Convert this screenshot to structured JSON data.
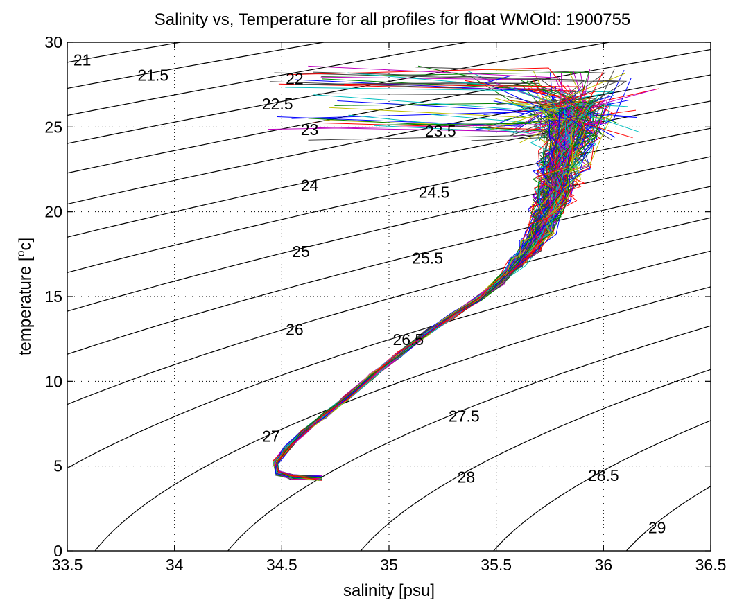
{
  "chart_data": {
    "type": "line",
    "title": "Salinity vs, Temperature for all profiles for float WMOId: 1900755",
    "xlabel": "salinity [psu]",
    "ylabel_parts": [
      "temperature [",
      "o",
      "c]"
    ],
    "xlim": [
      33.5,
      36.5
    ],
    "ylim": [
      0,
      30
    ],
    "x_ticks": [
      33.5,
      34,
      34.5,
      35,
      35.5,
      36,
      36.5
    ],
    "y_ticks": [
      0,
      5,
      10,
      15,
      20,
      25,
      30
    ],
    "x_tick_labels": [
      "33.5",
      "34",
      "34.5",
      "35",
      "35.5",
      "36",
      "36.5"
    ],
    "y_tick_labels": [
      "0",
      "5",
      "10",
      "15",
      "20",
      "25",
      "30"
    ],
    "grid": true,
    "density_contours": [
      {
        "label": "21",
        "label_at": [
          33.57,
          29.0
        ]
      },
      {
        "label": "21.5",
        "label_at": [
          33.9,
          28.1
        ]
      },
      {
        "label": "22",
        "label_at": [
          34.56,
          27.9
        ]
      },
      {
        "label": "22.5",
        "label_at": [
          34.48,
          26.4
        ]
      },
      {
        "label": "23",
        "label_at": [
          34.63,
          24.9
        ]
      },
      {
        "label": "23.5",
        "label_at": [
          35.24,
          24.8
        ]
      },
      {
        "label": "24",
        "label_at": [
          34.63,
          21.6
        ]
      },
      {
        "label": "24.5",
        "label_at": [
          35.21,
          21.2
        ]
      },
      {
        "label": "25",
        "label_at": [
          34.59,
          17.7
        ]
      },
      {
        "label": "25.5",
        "label_at": [
          35.18,
          17.3
        ]
      },
      {
        "label": "26",
        "label_at": [
          34.56,
          13.1
        ]
      },
      {
        "label": "26.5",
        "label_at": [
          35.09,
          12.5
        ]
      },
      {
        "label": "27",
        "label_at": [
          34.45,
          6.8
        ]
      },
      {
        "label": "27.5",
        "label_at": [
          35.35,
          8.0
        ]
      },
      {
        "label": "28",
        "label_at": [
          35.36,
          4.4
        ]
      },
      {
        "label": "28.5",
        "label_at": [
          36.0,
          4.5
        ]
      },
      {
        "label": "29",
        "label_at": [
          36.25,
          1.4
        ]
      }
    ],
    "profile_colors": [
      "#0000ff",
      "#008000",
      "#ff0000",
      "#00bfbf",
      "#bf00bf",
      "#bfbf00",
      "#404040"
    ],
    "mean_profile": {
      "salinity": [
        34.68,
        34.55,
        34.48,
        34.47,
        34.52,
        34.6,
        34.7,
        34.8,
        34.92,
        35.05,
        35.18,
        35.3,
        35.42,
        35.52,
        35.6,
        35.66,
        35.71,
        35.74,
        35.77,
        35.79,
        35.81,
        35.83,
        35.85
      ],
      "temperature": [
        4.3,
        4.35,
        4.6,
        5.2,
        6.0,
        7.0,
        8.0,
        9.0,
        10.3,
        11.6,
        12.9,
        13.9,
        14.9,
        15.9,
        17.0,
        18.0,
        19.0,
        20.0,
        21.0,
        22.0,
        23.0,
        24.5,
        26.0
      ]
    },
    "profile_count": 150
  }
}
